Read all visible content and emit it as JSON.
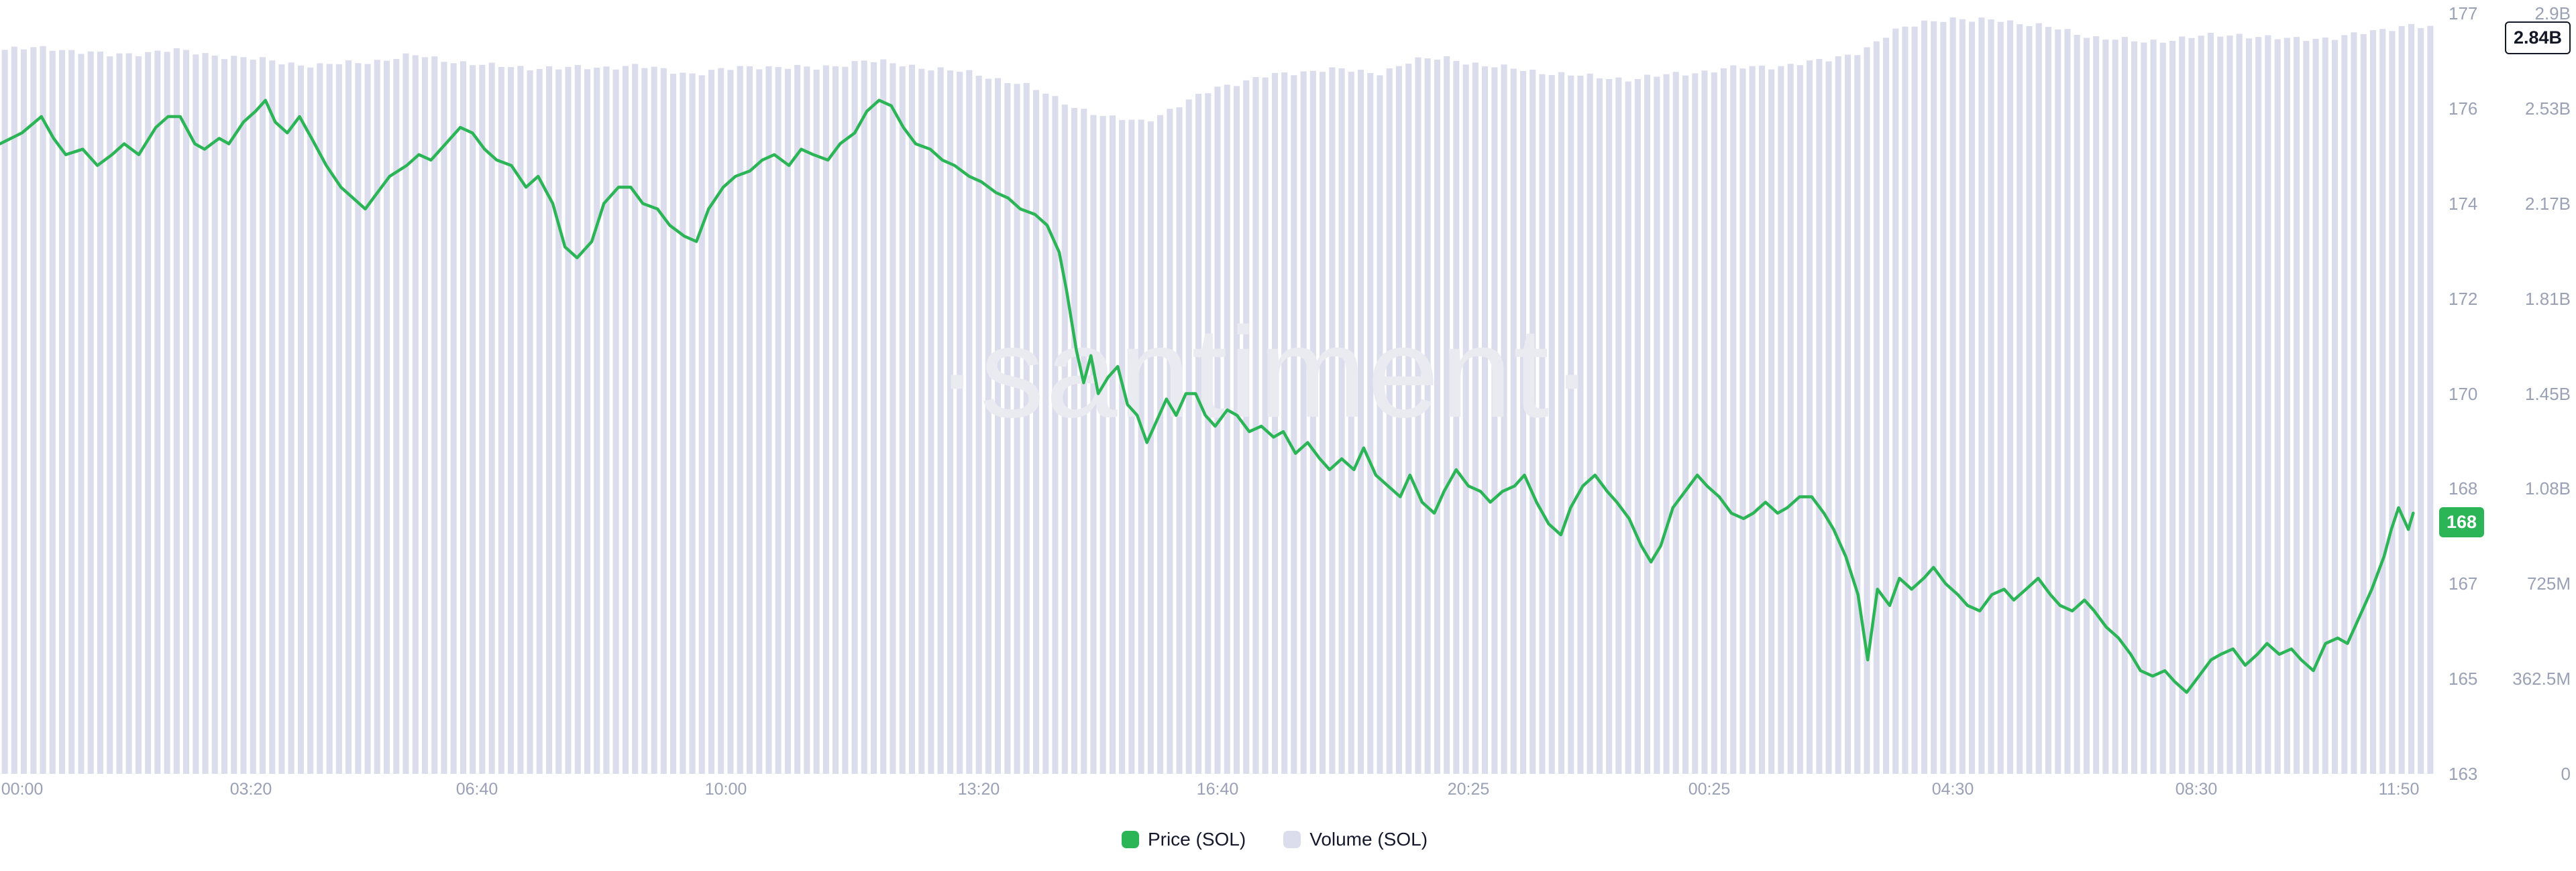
{
  "colors": {
    "background": "#ffffff",
    "price_green": "#2bb556",
    "volume_lavender": "#dcddec",
    "axis_text": "#9aa1b6",
    "legend_text": "#15182d",
    "watermark": "#eaebf1"
  },
  "legend": {
    "items": [
      {
        "label": "Price (SOL)",
        "color": "#2bb556"
      },
      {
        "label": "Volume (SOL)",
        "color": "#dcddec"
      }
    ]
  },
  "badges": {
    "price_last": {
      "text": "168",
      "bg": "#2bb556",
      "fg": "#ffffff"
    },
    "volume_last": {
      "text": "2.84B",
      "bg": "#ffffff",
      "fg": "#131726",
      "border": "#131726"
    }
  },
  "chart_data": {
    "type": "line",
    "combo": "price line overlaid on volume bars",
    "title": "",
    "xlabel": "",
    "ylabel": "",
    "watermark": "·santiment·",
    "grid": false,
    "background": "#ffffff",
    "legend_position": "bottom-center",
    "price_axis": {
      "side": "right",
      "range": [
        163,
        177
      ],
      "labels": [
        "177",
        "176",
        "174",
        "172",
        "170",
        "168",
        "167",
        "165",
        "163"
      ],
      "last_value_badge": "168"
    },
    "volume_axis": {
      "side": "far-right",
      "range_B": [
        0,
        2.9
      ],
      "labels": [
        "2.9B",
        "2.53B",
        "2.17B",
        "1.81B",
        "1.45B",
        "1.08B",
        "725M",
        "362.5M",
        "0"
      ],
      "last_value_badge": "2.84B"
    },
    "time_axis": {
      "ticks": [
        {
          "label": "00:00",
          "f": 0.009
        },
        {
          "label": "03:20",
          "f": 0.103
        },
        {
          "label": "06:40",
          "f": 0.196
        },
        {
          "label": "10:00",
          "f": 0.298
        },
        {
          "label": "13:20",
          "f": 0.402
        },
        {
          "label": "16:40",
          "f": 0.5
        },
        {
          "label": "20:25",
          "f": 0.603
        },
        {
          "label": "00:25",
          "f": 0.702
        },
        {
          "label": "04:30",
          "f": 0.802
        },
        {
          "label": "08:30",
          "f": 0.902
        },
        {
          "label": "11:50",
          "f": 0.985
        }
      ]
    },
    "series": [
      {
        "name": "Price (SOL)",
        "type": "line",
        "color": "#2bb556",
        "unit": "USD",
        "last_label": "168",
        "points": [
          [
            0,
            174.6
          ],
          [
            0.009,
            174.8
          ],
          [
            0.017,
            175.1
          ],
          [
            0.022,
            174.7
          ],
          [
            0.027,
            174.4
          ],
          [
            0.034,
            174.5
          ],
          [
            0.04,
            174.2
          ],
          [
            0.046,
            174.4
          ],
          [
            0.051,
            174.6
          ],
          [
            0.057,
            174.4
          ],
          [
            0.064,
            174.9
          ],
          [
            0.069,
            175.1
          ],
          [
            0.074,
            175.1
          ],
          [
            0.08,
            174.6
          ],
          [
            0.084,
            174.5
          ],
          [
            0.09,
            174.7
          ],
          [
            0.094,
            174.6
          ],
          [
            0.1,
            175
          ],
          [
            0.105,
            175.2
          ],
          [
            0.109,
            175.4
          ],
          [
            0.113,
            175
          ],
          [
            0.118,
            174.8
          ],
          [
            0.123,
            175.1
          ],
          [
            0.128,
            174.7
          ],
          [
            0.134,
            174.2
          ],
          [
            0.14,
            173.8
          ],
          [
            0.145,
            173.6
          ],
          [
            0.15,
            173.4
          ],
          [
            0.155,
            173.7
          ],
          [
            0.16,
            174
          ],
          [
            0.167,
            174.2
          ],
          [
            0.172,
            174.4
          ],
          [
            0.177,
            174.3
          ],
          [
            0.183,
            174.6
          ],
          [
            0.189,
            174.9
          ],
          [
            0.194,
            174.8
          ],
          [
            0.199,
            174.5
          ],
          [
            0.204,
            174.3
          ],
          [
            0.21,
            174.2
          ],
          [
            0.216,
            173.8
          ],
          [
            0.221,
            174
          ],
          [
            0.227,
            173.5
          ],
          [
            0.232,
            172.7
          ],
          [
            0.237,
            172.5
          ],
          [
            0.243,
            172.8
          ],
          [
            0.248,
            173.5
          ],
          [
            0.254,
            173.8
          ],
          [
            0.259,
            173.8
          ],
          [
            0.264,
            173.5
          ],
          [
            0.27,
            173.4
          ],
          [
            0.275,
            173.1
          ],
          [
            0.281,
            172.9
          ],
          [
            0.286,
            172.8
          ],
          [
            0.291,
            173.4
          ],
          [
            0.297,
            173.8
          ],
          [
            0.302,
            174
          ],
          [
            0.308,
            174.1
          ],
          [
            0.313,
            174.3
          ],
          [
            0.318,
            174.4
          ],
          [
            0.324,
            174.2
          ],
          [
            0.329,
            174.5
          ],
          [
            0.334,
            174.4
          ],
          [
            0.34,
            174.3
          ],
          [
            0.345,
            174.6
          ],
          [
            0.351,
            174.8
          ],
          [
            0.356,
            175.2
          ],
          [
            0.361,
            175.4
          ],
          [
            0.366,
            175.3
          ],
          [
            0.371,
            174.9
          ],
          [
            0.376,
            174.6
          ],
          [
            0.382,
            174.5
          ],
          [
            0.387,
            174.3
          ],
          [
            0.392,
            174.2
          ],
          [
            0.398,
            174
          ],
          [
            0.403,
            173.9
          ],
          [
            0.409,
            173.7
          ],
          [
            0.414,
            173.6
          ],
          [
            0.419,
            173.4
          ],
          [
            0.425,
            173.3
          ],
          [
            0.43,
            173.1
          ],
          [
            0.435,
            172.6
          ],
          [
            0.438,
            171.9
          ],
          [
            0.442,
            170.8
          ],
          [
            0.445,
            170.2
          ],
          [
            0.448,
            170.7
          ],
          [
            0.451,
            170
          ],
          [
            0.455,
            170.3
          ],
          [
            0.459,
            170.5
          ],
          [
            0.463,
            169.8
          ],
          [
            0.467,
            169.6
          ],
          [
            0.471,
            169.1
          ],
          [
            0.475,
            169.5
          ],
          [
            0.479,
            169.9
          ],
          [
            0.483,
            169.6
          ],
          [
            0.487,
            170
          ],
          [
            0.491,
            170
          ],
          [
            0.495,
            169.6
          ],
          [
            0.499,
            169.4
          ],
          [
            0.504,
            169.7
          ],
          [
            0.508,
            169.6
          ],
          [
            0.513,
            169.3
          ],
          [
            0.518,
            169.4
          ],
          [
            0.523,
            169.2
          ],
          [
            0.527,
            169.3
          ],
          [
            0.532,
            168.9
          ],
          [
            0.537,
            169.1
          ],
          [
            0.542,
            168.8
          ],
          [
            0.546,
            168.6
          ],
          [
            0.551,
            168.8
          ],
          [
            0.556,
            168.6
          ],
          [
            0.56,
            169
          ],
          [
            0.565,
            168.5
          ],
          [
            0.57,
            168.3
          ],
          [
            0.575,
            168.1
          ],
          [
            0.579,
            168.5
          ],
          [
            0.584,
            168
          ],
          [
            0.589,
            167.8
          ],
          [
            0.593,
            168.2
          ],
          [
            0.598,
            168.6
          ],
          [
            0.603,
            168.3
          ],
          [
            0.608,
            168.2
          ],
          [
            0.612,
            168
          ],
          [
            0.617,
            168.2
          ],
          [
            0.622,
            168.3
          ],
          [
            0.626,
            168.5
          ],
          [
            0.631,
            168
          ],
          [
            0.636,
            167.6
          ],
          [
            0.641,
            167.4
          ],
          [
            0.645,
            167.9
          ],
          [
            0.65,
            168.3
          ],
          [
            0.655,
            168.5
          ],
          [
            0.66,
            168.2
          ],
          [
            0.664,
            168
          ],
          [
            0.669,
            167.7
          ],
          [
            0.674,
            167.2
          ],
          [
            0.678,
            166.9
          ],
          [
            0.682,
            167.2
          ],
          [
            0.687,
            167.9
          ],
          [
            0.692,
            168.2
          ],
          [
            0.697,
            168.5
          ],
          [
            0.701,
            168.3
          ],
          [
            0.706,
            168.1
          ],
          [
            0.711,
            167.8
          ],
          [
            0.716,
            167.7
          ],
          [
            0.72,
            167.8
          ],
          [
            0.725,
            168
          ],
          [
            0.73,
            167.8
          ],
          [
            0.734,
            167.9
          ],
          [
            0.739,
            168.1
          ],
          [
            0.744,
            168.1
          ],
          [
            0.749,
            167.8
          ],
          [
            0.753,
            167.5
          ],
          [
            0.758,
            167
          ],
          [
            0.763,
            166.3
          ],
          [
            0.767,
            165.1
          ],
          [
            0.771,
            166.4
          ],
          [
            0.776,
            166.1
          ],
          [
            0.78,
            166.6
          ],
          [
            0.785,
            166.4
          ],
          [
            0.79,
            166.6
          ],
          [
            0.794,
            166.8
          ],
          [
            0.799,
            166.5
          ],
          [
            0.804,
            166.3
          ],
          [
            0.808,
            166.1
          ],
          [
            0.813,
            166
          ],
          [
            0.818,
            166.3
          ],
          [
            0.823,
            166.4
          ],
          [
            0.827,
            166.2
          ],
          [
            0.832,
            166.4
          ],
          [
            0.837,
            166.6
          ],
          [
            0.842,
            166.3
          ],
          [
            0.846,
            166.1
          ],
          [
            0.851,
            166
          ],
          [
            0.856,
            166.2
          ],
          [
            0.86,
            166
          ],
          [
            0.865,
            165.7
          ],
          [
            0.87,
            165.5
          ],
          [
            0.875,
            165.2
          ],
          [
            0.879,
            164.9
          ],
          [
            0.884,
            164.8
          ],
          [
            0.889,
            164.9
          ],
          [
            0.893,
            164.7
          ],
          [
            0.898,
            164.5
          ],
          [
            0.903,
            164.8
          ],
          [
            0.908,
            165.1
          ],
          [
            0.912,
            165.2
          ],
          [
            0.917,
            165.3
          ],
          [
            0.922,
            165
          ],
          [
            0.927,
            165.2
          ],
          [
            0.931,
            165.4
          ],
          [
            0.936,
            165.2
          ],
          [
            0.941,
            165.3
          ],
          [
            0.945,
            165.1
          ],
          [
            0.95,
            164.9
          ],
          [
            0.955,
            165.4
          ],
          [
            0.96,
            165.5
          ],
          [
            0.964,
            165.4
          ],
          [
            0.969,
            165.9
          ],
          [
            0.974,
            166.4
          ],
          [
            0.979,
            167
          ],
          [
            0.982,
            167.5
          ],
          [
            0.985,
            167.9
          ],
          [
            0.989,
            167.5
          ],
          [
            0.991,
            167.8
          ]
        ]
      },
      {
        "name": "Volume (SOL)",
        "type": "bar",
        "color": "#dcddec",
        "unit": "volume, B = billions",
        "last_label": "2.84B",
        "bar_count": 255,
        "envelope_points": [
          [
            0,
            2.76
          ],
          [
            0.02,
            2.77
          ],
          [
            0.045,
            2.74
          ],
          [
            0.07,
            2.76
          ],
          [
            0.1,
            2.73
          ],
          [
            0.13,
            2.7
          ],
          [
            0.155,
            2.72
          ],
          [
            0.17,
            2.74
          ],
          [
            0.2,
            2.7
          ],
          [
            0.23,
            2.69
          ],
          [
            0.26,
            2.7
          ],
          [
            0.285,
            2.67
          ],
          [
            0.31,
            2.7
          ],
          [
            0.335,
            2.69
          ],
          [
            0.355,
            2.72
          ],
          [
            0.375,
            2.7
          ],
          [
            0.4,
            2.67
          ],
          [
            0.42,
            2.63
          ],
          [
            0.44,
            2.55
          ],
          [
            0.455,
            2.5
          ],
          [
            0.47,
            2.49
          ],
          [
            0.485,
            2.55
          ],
          [
            0.5,
            2.62
          ],
          [
            0.52,
            2.66
          ],
          [
            0.545,
            2.69
          ],
          [
            0.565,
            2.67
          ],
          [
            0.58,
            2.72
          ],
          [
            0.595,
            2.73
          ],
          [
            0.61,
            2.7
          ],
          [
            0.63,
            2.68
          ],
          [
            0.65,
            2.66
          ],
          [
            0.67,
            2.65
          ],
          [
            0.69,
            2.67
          ],
          [
            0.71,
            2.69
          ],
          [
            0.73,
            2.7
          ],
          [
            0.75,
            2.72
          ],
          [
            0.765,
            2.76
          ],
          [
            0.778,
            2.83
          ],
          [
            0.79,
            2.87
          ],
          [
            0.8,
            2.88
          ],
          [
            0.81,
            2.87
          ],
          [
            0.82,
            2.88
          ],
          [
            0.832,
            2.86
          ],
          [
            0.845,
            2.84
          ],
          [
            0.86,
            2.81
          ],
          [
            0.88,
            2.79
          ],
          [
            0.9,
            2.81
          ],
          [
            0.92,
            2.82
          ],
          [
            0.94,
            2.8
          ],
          [
            0.96,
            2.81
          ],
          [
            0.975,
            2.83
          ],
          [
            0.99,
            2.86
          ],
          [
            1,
            2.84
          ]
        ]
      }
    ]
  }
}
